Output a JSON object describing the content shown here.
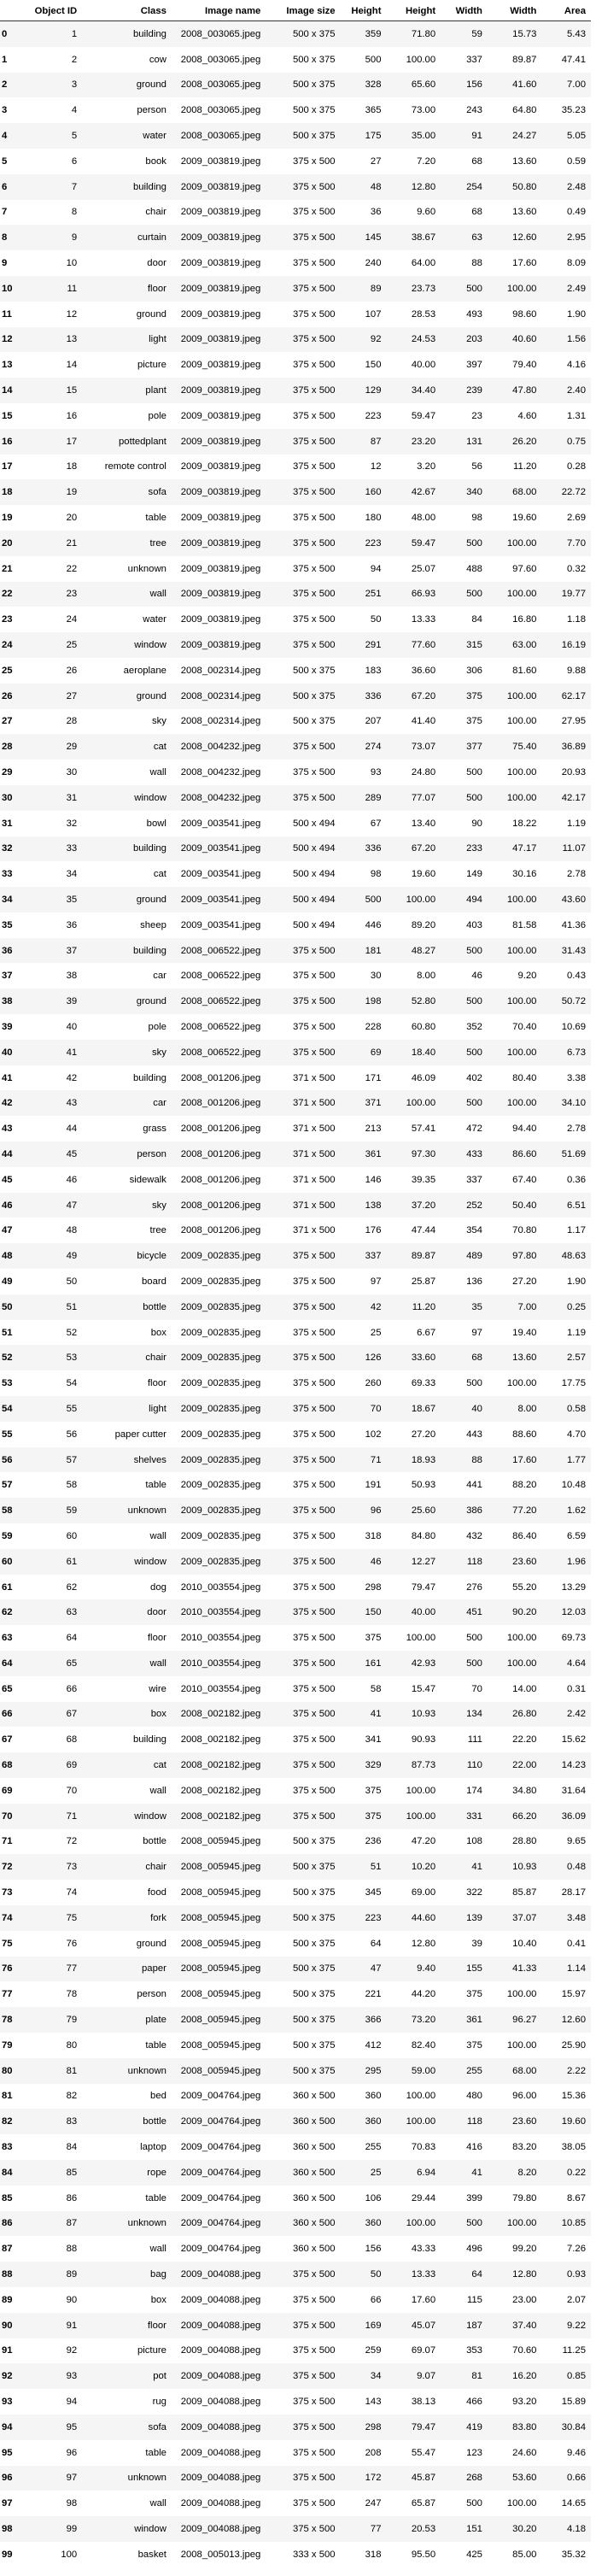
{
  "columns": [
    "",
    "Object ID",
    "Class",
    "Image name",
    "Image size",
    "Height",
    "Height",
    "Width",
    "Width",
    "Area"
  ],
  "rows": [
    [
      "0",
      "1",
      "building",
      "2008_003065.jpeg",
      "500 x 375",
      "359",
      "71.80",
      "59",
      "15.73",
      "5.43"
    ],
    [
      "1",
      "2",
      "cow",
      "2008_003065.jpeg",
      "500 x 375",
      "500",
      "100.00",
      "337",
      "89.87",
      "47.41"
    ],
    [
      "2",
      "3",
      "ground",
      "2008_003065.jpeg",
      "500 x 375",
      "328",
      "65.60",
      "156",
      "41.60",
      "7.00"
    ],
    [
      "3",
      "4",
      "person",
      "2008_003065.jpeg",
      "500 x 375",
      "365",
      "73.00",
      "243",
      "64.80",
      "35.23"
    ],
    [
      "4",
      "5",
      "water",
      "2008_003065.jpeg",
      "500 x 375",
      "175",
      "35.00",
      "91",
      "24.27",
      "5.05"
    ],
    [
      "5",
      "6",
      "book",
      "2009_003819.jpeg",
      "375 x 500",
      "27",
      "7.20",
      "68",
      "13.60",
      "0.59"
    ],
    [
      "6",
      "7",
      "building",
      "2009_003819.jpeg",
      "375 x 500",
      "48",
      "12.80",
      "254",
      "50.80",
      "2.48"
    ],
    [
      "7",
      "8",
      "chair",
      "2009_003819.jpeg",
      "375 x 500",
      "36",
      "9.60",
      "68",
      "13.60",
      "0.49"
    ],
    [
      "8",
      "9",
      "curtain",
      "2009_003819.jpeg",
      "375 x 500",
      "145",
      "38.67",
      "63",
      "12.60",
      "2.95"
    ],
    [
      "9",
      "10",
      "door",
      "2009_003819.jpeg",
      "375 x 500",
      "240",
      "64.00",
      "88",
      "17.60",
      "8.09"
    ],
    [
      "10",
      "11",
      "floor",
      "2009_003819.jpeg",
      "375 x 500",
      "89",
      "23.73",
      "500",
      "100.00",
      "2.49"
    ],
    [
      "11",
      "12",
      "ground",
      "2009_003819.jpeg",
      "375 x 500",
      "107",
      "28.53",
      "493",
      "98.60",
      "1.90"
    ],
    [
      "12",
      "13",
      "light",
      "2009_003819.jpeg",
      "375 x 500",
      "92",
      "24.53",
      "203",
      "40.60",
      "1.56"
    ],
    [
      "13",
      "14",
      "picture",
      "2009_003819.jpeg",
      "375 x 500",
      "150",
      "40.00",
      "397",
      "79.40",
      "4.16"
    ],
    [
      "14",
      "15",
      "plant",
      "2009_003819.jpeg",
      "375 x 500",
      "129",
      "34.40",
      "239",
      "47.80",
      "2.40"
    ],
    [
      "15",
      "16",
      "pole",
      "2009_003819.jpeg",
      "375 x 500",
      "223",
      "59.47",
      "23",
      "4.60",
      "1.31"
    ],
    [
      "16",
      "17",
      "pottedplant",
      "2009_003819.jpeg",
      "375 x 500",
      "87",
      "23.20",
      "131",
      "26.20",
      "0.75"
    ],
    [
      "17",
      "18",
      "remote control",
      "2009_003819.jpeg",
      "375 x 500",
      "12",
      "3.20",
      "56",
      "11.20",
      "0.28"
    ],
    [
      "18",
      "19",
      "sofa",
      "2009_003819.jpeg",
      "375 x 500",
      "160",
      "42.67",
      "340",
      "68.00",
      "22.72"
    ],
    [
      "19",
      "20",
      "table",
      "2009_003819.jpeg",
      "375 x 500",
      "180",
      "48.00",
      "98",
      "19.60",
      "2.69"
    ],
    [
      "20",
      "21",
      "tree",
      "2009_003819.jpeg",
      "375 x 500",
      "223",
      "59.47",
      "500",
      "100.00",
      "7.70"
    ],
    [
      "21",
      "22",
      "unknown",
      "2009_003819.jpeg",
      "375 x 500",
      "94",
      "25.07",
      "488",
      "97.60",
      "0.32"
    ],
    [
      "22",
      "23",
      "wall",
      "2009_003819.jpeg",
      "375 x 500",
      "251",
      "66.93",
      "500",
      "100.00",
      "19.77"
    ],
    [
      "23",
      "24",
      "water",
      "2009_003819.jpeg",
      "375 x 500",
      "50",
      "13.33",
      "84",
      "16.80",
      "1.18"
    ],
    [
      "24",
      "25",
      "window",
      "2009_003819.jpeg",
      "375 x 500",
      "291",
      "77.60",
      "315",
      "63.00",
      "16.19"
    ],
    [
      "25",
      "26",
      "aeroplane",
      "2008_002314.jpeg",
      "500 x 375",
      "183",
      "36.60",
      "306",
      "81.60",
      "9.88"
    ],
    [
      "26",
      "27",
      "ground",
      "2008_002314.jpeg",
      "500 x 375",
      "336",
      "67.20",
      "375",
      "100.00",
      "62.17"
    ],
    [
      "27",
      "28",
      "sky",
      "2008_002314.jpeg",
      "500 x 375",
      "207",
      "41.40",
      "375",
      "100.00",
      "27.95"
    ],
    [
      "28",
      "29",
      "cat",
      "2008_004232.jpeg",
      "375 x 500",
      "274",
      "73.07",
      "377",
      "75.40",
      "36.89"
    ],
    [
      "29",
      "30",
      "wall",
      "2008_004232.jpeg",
      "375 x 500",
      "93",
      "24.80",
      "500",
      "100.00",
      "20.93"
    ],
    [
      "30",
      "31",
      "window",
      "2008_004232.jpeg",
      "375 x 500",
      "289",
      "77.07",
      "500",
      "100.00",
      "42.17"
    ],
    [
      "31",
      "32",
      "bowl",
      "2009_003541.jpeg",
      "500 x 494",
      "67",
      "13.40",
      "90",
      "18.22",
      "1.19"
    ],
    [
      "32",
      "33",
      "building",
      "2009_003541.jpeg",
      "500 x 494",
      "336",
      "67.20",
      "233",
      "47.17",
      "11.07"
    ],
    [
      "33",
      "34",
      "cat",
      "2009_003541.jpeg",
      "500 x 494",
      "98",
      "19.60",
      "149",
      "30.16",
      "2.78"
    ],
    [
      "34",
      "35",
      "ground",
      "2009_003541.jpeg",
      "500 x 494",
      "500",
      "100.00",
      "494",
      "100.00",
      "43.60"
    ],
    [
      "35",
      "36",
      "sheep",
      "2009_003541.jpeg",
      "500 x 494",
      "446",
      "89.20",
      "403",
      "81.58",
      "41.36"
    ],
    [
      "36",
      "37",
      "building",
      "2008_006522.jpeg",
      "375 x 500",
      "181",
      "48.27",
      "500",
      "100.00",
      "31.43"
    ],
    [
      "37",
      "38",
      "car",
      "2008_006522.jpeg",
      "375 x 500",
      "30",
      "8.00",
      "46",
      "9.20",
      "0.43"
    ],
    [
      "38",
      "39",
      "ground",
      "2008_006522.jpeg",
      "375 x 500",
      "198",
      "52.80",
      "500",
      "100.00",
      "50.72"
    ],
    [
      "39",
      "40",
      "pole",
      "2008_006522.jpeg",
      "375 x 500",
      "228",
      "60.80",
      "352",
      "70.40",
      "10.69"
    ],
    [
      "40",
      "41",
      "sky",
      "2008_006522.jpeg",
      "375 x 500",
      "69",
      "18.40",
      "500",
      "100.00",
      "6.73"
    ],
    [
      "41",
      "42",
      "building",
      "2008_001206.jpeg",
      "371 x 500",
      "171",
      "46.09",
      "402",
      "80.40",
      "3.38"
    ],
    [
      "42",
      "43",
      "car",
      "2008_001206.jpeg",
      "371 x 500",
      "371",
      "100.00",
      "500",
      "100.00",
      "34.10"
    ],
    [
      "43",
      "44",
      "grass",
      "2008_001206.jpeg",
      "371 x 500",
      "213",
      "57.41",
      "472",
      "94.40",
      "2.78"
    ],
    [
      "44",
      "45",
      "person",
      "2008_001206.jpeg",
      "371 x 500",
      "361",
      "97.30",
      "433",
      "86.60",
      "51.69"
    ],
    [
      "45",
      "46",
      "sidewalk",
      "2008_001206.jpeg",
      "371 x 500",
      "146",
      "39.35",
      "337",
      "67.40",
      "0.36"
    ],
    [
      "46",
      "47",
      "sky",
      "2008_001206.jpeg",
      "371 x 500",
      "138",
      "37.20",
      "252",
      "50.40",
      "6.51"
    ],
    [
      "47",
      "48",
      "tree",
      "2008_001206.jpeg",
      "371 x 500",
      "176",
      "47.44",
      "354",
      "70.80",
      "1.17"
    ],
    [
      "48",
      "49",
      "bicycle",
      "2009_002835.jpeg",
      "375 x 500",
      "337",
      "89.87",
      "489",
      "97.80",
      "48.63"
    ],
    [
      "49",
      "50",
      "board",
      "2009_002835.jpeg",
      "375 x 500",
      "97",
      "25.87",
      "136",
      "27.20",
      "1.90"
    ],
    [
      "50",
      "51",
      "bottle",
      "2009_002835.jpeg",
      "375 x 500",
      "42",
      "11.20",
      "35",
      "7.00",
      "0.25"
    ],
    [
      "51",
      "52",
      "box",
      "2009_002835.jpeg",
      "375 x 500",
      "25",
      "6.67",
      "97",
      "19.40",
      "1.19"
    ],
    [
      "52",
      "53",
      "chair",
      "2009_002835.jpeg",
      "375 x 500",
      "126",
      "33.60",
      "68",
      "13.60",
      "2.57"
    ],
    [
      "53",
      "54",
      "floor",
      "2009_002835.jpeg",
      "375 x 500",
      "260",
      "69.33",
      "500",
      "100.00",
      "17.75"
    ],
    [
      "54",
      "55",
      "light",
      "2009_002835.jpeg",
      "375 x 500",
      "70",
      "18.67",
      "40",
      "8.00",
      "0.58"
    ],
    [
      "55",
      "56",
      "paper cutter",
      "2009_002835.jpeg",
      "375 x 500",
      "102",
      "27.20",
      "443",
      "88.60",
      "4.70"
    ],
    [
      "56",
      "57",
      "shelves",
      "2009_002835.jpeg",
      "375 x 500",
      "71",
      "18.93",
      "88",
      "17.60",
      "1.77"
    ],
    [
      "57",
      "58",
      "table",
      "2009_002835.jpeg",
      "375 x 500",
      "191",
      "50.93",
      "441",
      "88.20",
      "10.48"
    ],
    [
      "58",
      "59",
      "unknown",
      "2009_002835.jpeg",
      "375 x 500",
      "96",
      "25.60",
      "386",
      "77.20",
      "1.62"
    ],
    [
      "59",
      "60",
      "wall",
      "2009_002835.jpeg",
      "375 x 500",
      "318",
      "84.80",
      "432",
      "86.40",
      "6.59"
    ],
    [
      "60",
      "61",
      "window",
      "2009_002835.jpeg",
      "375 x 500",
      "46",
      "12.27",
      "118",
      "23.60",
      "1.96"
    ],
    [
      "61",
      "62",
      "dog",
      "2010_003554.jpeg",
      "375 x 500",
      "298",
      "79.47",
      "276",
      "55.20",
      "13.29"
    ],
    [
      "62",
      "63",
      "door",
      "2010_003554.jpeg",
      "375 x 500",
      "150",
      "40.00",
      "451",
      "90.20",
      "12.03"
    ],
    [
      "63",
      "64",
      "floor",
      "2010_003554.jpeg",
      "375 x 500",
      "375",
      "100.00",
      "500",
      "100.00",
      "69.73"
    ],
    [
      "64",
      "65",
      "wall",
      "2010_003554.jpeg",
      "375 x 500",
      "161",
      "42.93",
      "500",
      "100.00",
      "4.64"
    ],
    [
      "65",
      "66",
      "wire",
      "2010_003554.jpeg",
      "375 x 500",
      "58",
      "15.47",
      "70",
      "14.00",
      "0.31"
    ],
    [
      "66",
      "67",
      "box",
      "2008_002182.jpeg",
      "375 x 500",
      "41",
      "10.93",
      "134",
      "26.80",
      "2.42"
    ],
    [
      "67",
      "68",
      "building",
      "2008_002182.jpeg",
      "375 x 500",
      "341",
      "90.93",
      "111",
      "22.20",
      "15.62"
    ],
    [
      "68",
      "69",
      "cat",
      "2008_002182.jpeg",
      "375 x 500",
      "329",
      "87.73",
      "110",
      "22.00",
      "14.23"
    ],
    [
      "69",
      "70",
      "wall",
      "2008_002182.jpeg",
      "375 x 500",
      "375",
      "100.00",
      "174",
      "34.80",
      "31.64"
    ],
    [
      "70",
      "71",
      "window",
      "2008_002182.jpeg",
      "375 x 500",
      "375",
      "100.00",
      "331",
      "66.20",
      "36.09"
    ],
    [
      "71",
      "72",
      "bottle",
      "2008_005945.jpeg",
      "500 x 375",
      "236",
      "47.20",
      "108",
      "28.80",
      "9.65"
    ],
    [
      "72",
      "73",
      "chair",
      "2008_005945.jpeg",
      "500 x 375",
      "51",
      "10.20",
      "41",
      "10.93",
      "0.48"
    ],
    [
      "73",
      "74",
      "food",
      "2008_005945.jpeg",
      "500 x 375",
      "345",
      "69.00",
      "322",
      "85.87",
      "28.17"
    ],
    [
      "74",
      "75",
      "fork",
      "2008_005945.jpeg",
      "500 x 375",
      "223",
      "44.60",
      "139",
      "37.07",
      "3.48"
    ],
    [
      "75",
      "76",
      "ground",
      "2008_005945.jpeg",
      "500 x 375",
      "64",
      "12.80",
      "39",
      "10.40",
      "0.41"
    ],
    [
      "76",
      "77",
      "paper",
      "2008_005945.jpeg",
      "500 x 375",
      "47",
      "9.40",
      "155",
      "41.33",
      "1.14"
    ],
    [
      "77",
      "78",
      "person",
      "2008_005945.jpeg",
      "500 x 375",
      "221",
      "44.20",
      "375",
      "100.00",
      "15.97"
    ],
    [
      "78",
      "79",
      "plate",
      "2008_005945.jpeg",
      "500 x 375",
      "366",
      "73.20",
      "361",
      "96.27",
      "12.60"
    ],
    [
      "79",
      "80",
      "table",
      "2008_005945.jpeg",
      "500 x 375",
      "412",
      "82.40",
      "375",
      "100.00",
      "25.90"
    ],
    [
      "80",
      "81",
      "unknown",
      "2008_005945.jpeg",
      "500 x 375",
      "295",
      "59.00",
      "255",
      "68.00",
      "2.22"
    ],
    [
      "81",
      "82",
      "bed",
      "2009_004764.jpeg",
      "360 x 500",
      "360",
      "100.00",
      "480",
      "96.00",
      "15.36"
    ],
    [
      "82",
      "83",
      "bottle",
      "2009_004764.jpeg",
      "360 x 500",
      "360",
      "100.00",
      "118",
      "23.60",
      "19.60"
    ],
    [
      "83",
      "84",
      "laptop",
      "2009_004764.jpeg",
      "360 x 500",
      "255",
      "70.83",
      "416",
      "83.20",
      "38.05"
    ],
    [
      "84",
      "85",
      "rope",
      "2009_004764.jpeg",
      "360 x 500",
      "25",
      "6.94",
      "41",
      "8.20",
      "0.22"
    ],
    [
      "85",
      "86",
      "table",
      "2009_004764.jpeg",
      "360 x 500",
      "106",
      "29.44",
      "399",
      "79.80",
      "8.67"
    ],
    [
      "86",
      "87",
      "unknown",
      "2009_004764.jpeg",
      "360 x 500",
      "360",
      "100.00",
      "500",
      "100.00",
      "10.85"
    ],
    [
      "87",
      "88",
      "wall",
      "2009_004764.jpeg",
      "360 x 500",
      "156",
      "43.33",
      "496",
      "99.20",
      "7.26"
    ],
    [
      "88",
      "89",
      "bag",
      "2009_004088.jpeg",
      "375 x 500",
      "50",
      "13.33",
      "64",
      "12.80",
      "0.93"
    ],
    [
      "89",
      "90",
      "box",
      "2009_004088.jpeg",
      "375 x 500",
      "66",
      "17.60",
      "115",
      "23.00",
      "2.07"
    ],
    [
      "90",
      "91",
      "floor",
      "2009_004088.jpeg",
      "375 x 500",
      "169",
      "45.07",
      "187",
      "37.40",
      "9.22"
    ],
    [
      "91",
      "92",
      "picture",
      "2009_004088.jpeg",
      "375 x 500",
      "259",
      "69.07",
      "353",
      "70.60",
      "11.25"
    ],
    [
      "92",
      "93",
      "pot",
      "2009_004088.jpeg",
      "375 x 500",
      "34",
      "9.07",
      "81",
      "16.20",
      "0.85"
    ],
    [
      "93",
      "94",
      "rug",
      "2009_004088.jpeg",
      "375 x 500",
      "143",
      "38.13",
      "466",
      "93.20",
      "15.89"
    ],
    [
      "94",
      "95",
      "sofa",
      "2009_004088.jpeg",
      "375 x 500",
      "298",
      "79.47",
      "419",
      "83.80",
      "30.84"
    ],
    [
      "95",
      "96",
      "table",
      "2009_004088.jpeg",
      "375 x 500",
      "208",
      "55.47",
      "123",
      "24.60",
      "9.46"
    ],
    [
      "96",
      "97",
      "unknown",
      "2009_004088.jpeg",
      "375 x 500",
      "172",
      "45.87",
      "268",
      "53.60",
      "0.66"
    ],
    [
      "97",
      "98",
      "wall",
      "2009_004088.jpeg",
      "375 x 500",
      "247",
      "65.87",
      "500",
      "100.00",
      "14.65"
    ],
    [
      "98",
      "99",
      "window",
      "2009_004088.jpeg",
      "375 x 500",
      "77",
      "20.53",
      "151",
      "30.20",
      "4.18"
    ],
    [
      "99",
      "100",
      "basket",
      "2008_005013.jpeg",
      "333 x 500",
      "318",
      "95.50",
      "425",
      "85.00",
      "35.32"
    ]
  ]
}
